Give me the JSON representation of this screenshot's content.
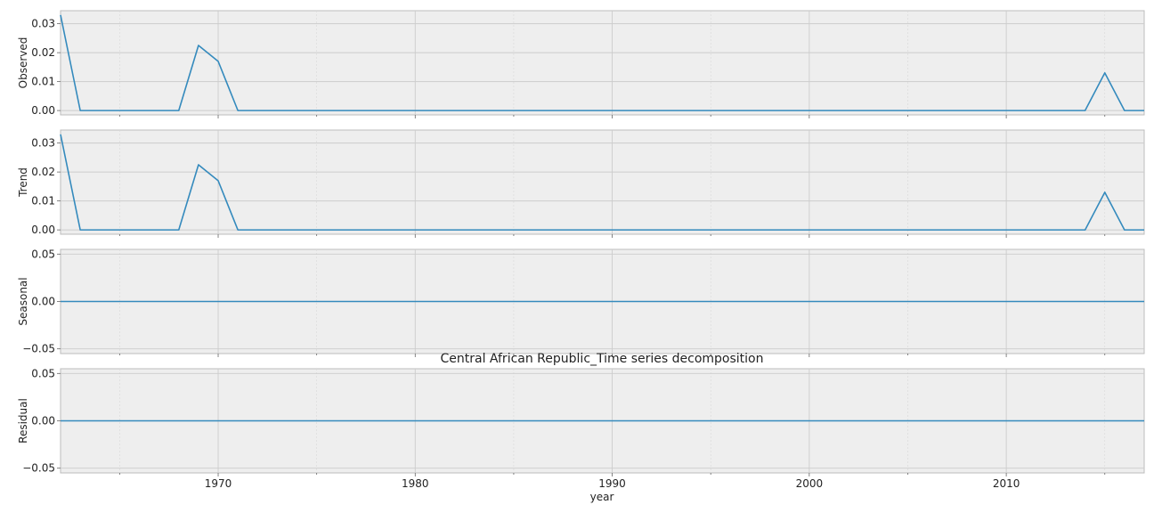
{
  "chart_data": {
    "type": "line",
    "title": "Central African Republic_Time series decomposition",
    "xlabel": "year",
    "xlim": [
      1962,
      2017
    ],
    "x_ticks": [
      1970,
      1980,
      1990,
      2000,
      2010
    ],
    "x": [
      1962,
      1963,
      1964,
      1965,
      1966,
      1967,
      1968,
      1969,
      1970,
      1971,
      1972,
      1973,
      1974,
      1975,
      1976,
      1977,
      1978,
      1979,
      1980,
      1981,
      1982,
      1983,
      1984,
      1985,
      1986,
      1987,
      1988,
      1989,
      1990,
      1991,
      1992,
      1993,
      1994,
      1995,
      1996,
      1997,
      1998,
      1999,
      2000,
      2001,
      2002,
      2003,
      2004,
      2005,
      2006,
      2007,
      2008,
      2009,
      2010,
      2011,
      2012,
      2013,
      2014,
      2015,
      2016,
      2017
    ],
    "grid": true,
    "line_color": "#348abd",
    "background_color": "#eeeeee",
    "panels": [
      {
        "ylabel": "Observed",
        "ylim": [
          -0.0015,
          0.0345
        ],
        "y_ticks": [
          0.0,
          0.01,
          0.02,
          0.03
        ],
        "y_tick_labels": [
          "0.00",
          "0.01",
          "0.02",
          "0.03"
        ],
        "values": [
          0.033,
          0,
          0,
          0,
          0,
          0,
          0,
          0.0225,
          0.017,
          0,
          0,
          0,
          0,
          0,
          0,
          0,
          0,
          0,
          0,
          0,
          0,
          0,
          0,
          0,
          0,
          0,
          0,
          0,
          0,
          0,
          0,
          0,
          0,
          0,
          0,
          0,
          0,
          0,
          0,
          0,
          0,
          0,
          0,
          0,
          0,
          0,
          0,
          0,
          0,
          0,
          0,
          0,
          0,
          0.013,
          0,
          0
        ]
      },
      {
        "ylabel": "Trend",
        "ylim": [
          -0.0015,
          0.0345
        ],
        "y_ticks": [
          0.0,
          0.01,
          0.02,
          0.03
        ],
        "y_tick_labels": [
          "0.00",
          "0.01",
          "0.02",
          "0.03"
        ],
        "values": [
          0.033,
          0,
          0,
          0,
          0,
          0,
          0,
          0.0225,
          0.017,
          0,
          0,
          0,
          0,
          0,
          0,
          0,
          0,
          0,
          0,
          0,
          0,
          0,
          0,
          0,
          0,
          0,
          0,
          0,
          0,
          0,
          0,
          0,
          0,
          0,
          0,
          0,
          0,
          0,
          0,
          0,
          0,
          0,
          0,
          0,
          0,
          0,
          0,
          0,
          0,
          0,
          0,
          0,
          0,
          0.013,
          0,
          0
        ]
      },
      {
        "ylabel": "Seasonal",
        "ylim": [
          -0.055,
          0.055
        ],
        "y_ticks": [
          -0.05,
          0.0,
          0.05
        ],
        "y_tick_labels": [
          "−0.05",
          "0.00",
          "0.05"
        ],
        "values": [
          0,
          0,
          0,
          0,
          0,
          0,
          0,
          0,
          0,
          0,
          0,
          0,
          0,
          0,
          0,
          0,
          0,
          0,
          0,
          0,
          0,
          0,
          0,
          0,
          0,
          0,
          0,
          0,
          0,
          0,
          0,
          0,
          0,
          0,
          0,
          0,
          0,
          0,
          0,
          0,
          0,
          0,
          0,
          0,
          0,
          0,
          0,
          0,
          0,
          0,
          0,
          0,
          0,
          0,
          0,
          0
        ]
      },
      {
        "ylabel": "Residual",
        "ylim": [
          -0.055,
          0.055
        ],
        "y_ticks": [
          -0.05,
          0.0,
          0.05
        ],
        "y_tick_labels": [
          "−0.05",
          "0.00",
          "0.05"
        ],
        "values": [
          0,
          0,
          0,
          0,
          0,
          0,
          0,
          0,
          0,
          0,
          0,
          0,
          0,
          0,
          0,
          0,
          0,
          0,
          0,
          0,
          0,
          0,
          0,
          0,
          0,
          0,
          0,
          0,
          0,
          0,
          0,
          0,
          0,
          0,
          0,
          0,
          0,
          0,
          0,
          0,
          0,
          0,
          0,
          0,
          0,
          0,
          0,
          0,
          0,
          0,
          0,
          0,
          0,
          0,
          0,
          0
        ]
      }
    ]
  }
}
